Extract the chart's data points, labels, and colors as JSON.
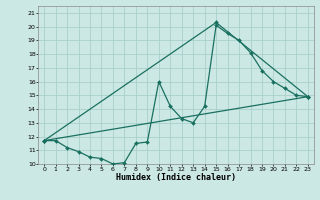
{
  "title": "",
  "xlabel": "Humidex (Indice chaleur)",
  "ylabel": "",
  "bg_color": "#cce8e4",
  "grid_color": "#aacfcb",
  "line_color": "#1a7060",
  "xlim": [
    -0.5,
    23.5
  ],
  "ylim": [
    10,
    21.5
  ],
  "xticks": [
    0,
    1,
    2,
    3,
    4,
    5,
    6,
    7,
    8,
    9,
    10,
    11,
    12,
    13,
    14,
    15,
    16,
    17,
    18,
    19,
    20,
    21,
    22,
    23
  ],
  "yticks": [
    10,
    11,
    12,
    13,
    14,
    15,
    16,
    17,
    18,
    19,
    20,
    21
  ],
  "line1_x": [
    0,
    1,
    2,
    3,
    4,
    5,
    6,
    7,
    8,
    9,
    10,
    11,
    12,
    13,
    14,
    15,
    16,
    17,
    18,
    19,
    20,
    21,
    22,
    23
  ],
  "line1_y": [
    11.7,
    11.7,
    11.2,
    10.9,
    10.5,
    10.4,
    10.0,
    10.1,
    11.5,
    11.6,
    16.0,
    14.2,
    13.3,
    13.0,
    14.2,
    20.1,
    19.5,
    19.0,
    18.1,
    16.8,
    16.0,
    15.5,
    15.0,
    14.9
  ],
  "line2_x": [
    0,
    23
  ],
  "line2_y": [
    11.7,
    14.9
  ],
  "line3_x": [
    0,
    15,
    23
  ],
  "line3_y": [
    11.7,
    20.3,
    14.9
  ]
}
